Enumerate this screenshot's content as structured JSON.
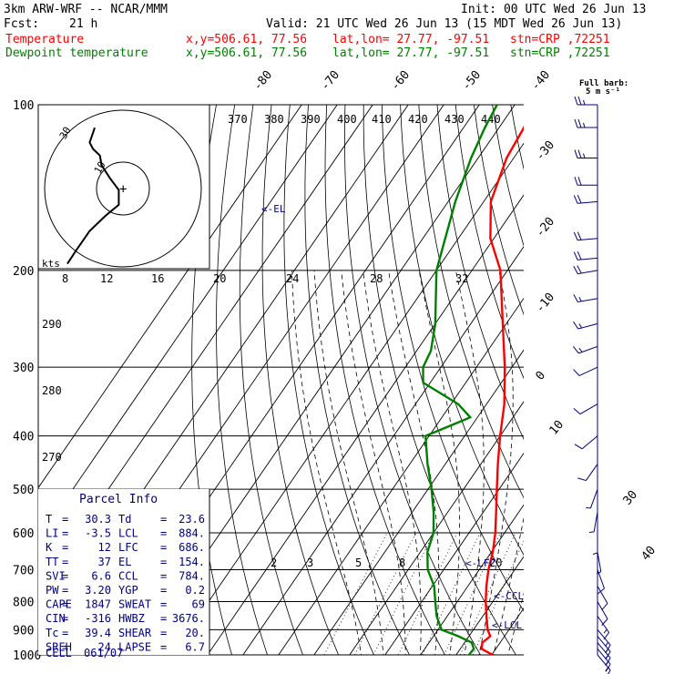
{
  "header": {
    "model": "3km ARW-WRF -- NCAR/MMM",
    "init": "Init: 00 UTC Wed 26 Jun 13",
    "fcst_label": "Fcst:",
    "fcst_hour": "21 h",
    "valid": "Valid: 21 UTC Wed 26 Jun 13 (15 MDT Wed 26 Jun 13)",
    "temp_label": "Temperature",
    "dew_label": "Dewpoint temperature",
    "xy": "x,y=506.61, 77.56",
    "latlon": "lat,lon= 27.77, -97.51",
    "stn": "stn=CRP ,72251"
  },
  "wind_legend": {
    "title": "Full barb:",
    "value": "5 m s⁻¹"
  },
  "parcel_info": {
    "title": "Parcel Info",
    "rows": [
      [
        "T",
        "30.3",
        "Td",
        "23.6"
      ],
      [
        "LI",
        "-3.5",
        "LCL",
        "884."
      ],
      [
        "K",
        "12",
        "LFC",
        "686."
      ],
      [
        "TT",
        "37",
        "EL",
        "154."
      ],
      [
        "SVI",
        "6.6",
        "CCL",
        "784."
      ],
      [
        "PW",
        "3.20",
        "YGP",
        "0.2"
      ],
      [
        "CAPE",
        "1847",
        "SWEAT",
        "69"
      ],
      [
        "CIN",
        "-316",
        "HWBZ",
        "3676."
      ],
      [
        "Tc",
        "39.4",
        "SHEAR",
        "20."
      ],
      [
        "SREH",
        "24",
        "LAPSE",
        "6.7"
      ]
    ],
    "cell_label": "CELL",
    "cell_value": "061/07"
  },
  "levels": {
    "el": "<-EL",
    "lfc": "<-LFC",
    "ccl": "<-CCL",
    "lcl": "<-LCL"
  },
  "hodograph": {
    "units": "kts",
    "ring_labels": [
      "10",
      "30"
    ]
  },
  "chart_data": {
    "type": "line",
    "title": "",
    "y_axis": "pressure (hPa), log scale, skew-T",
    "pressure_ticks": [
      100,
      200,
      300,
      400,
      500,
      600,
      700,
      800,
      900,
      1000
    ],
    "temperature_ticks": [
      -80,
      -70,
      -60,
      -50,
      -40,
      -30,
      -20,
      -10,
      0,
      10,
      30,
      40
    ],
    "theta_labels": [
      "370",
      "380",
      "390",
      "400",
      "410",
      "420",
      "430",
      "440",
      "290",
      "280",
      "270"
    ],
    "mixing_ratio_labels": [
      "8",
      "12",
      "16",
      "20",
      "24",
      "28",
      "32",
      "2",
      "3",
      "5",
      "8",
      "20"
    ],
    "series": [
      {
        "name": "Temperature",
        "color": "#ff0000",
        "points": [
          [
            1000,
            30.3
          ],
          [
            975,
            26
          ],
          [
            950,
            25
          ],
          [
            925,
            26
          ],
          [
            900,
            24
          ],
          [
            850,
            21
          ],
          [
            800,
            18
          ],
          [
            750,
            15.2
          ],
          [
            700,
            12.6
          ],
          [
            650,
            10.4
          ],
          [
            600,
            7.4
          ],
          [
            550,
            3.6
          ],
          [
            500,
            -0.6
          ],
          [
            450,
            -5.2
          ],
          [
            400,
            -10
          ],
          [
            350,
            -15
          ],
          [
            300,
            -22
          ],
          [
            250,
            -31
          ],
          [
            200,
            -42
          ],
          [
            175,
            -51
          ],
          [
            150,
            -58
          ],
          [
            125,
            -62
          ],
          [
            110,
            -63
          ],
          [
            100,
            -64.5
          ]
        ]
      },
      {
        "name": "Dewpoint temperature",
        "color": "#008000",
        "points": [
          [
            1000,
            23.6
          ],
          [
            975,
            23.8
          ],
          [
            950,
            22
          ],
          [
            925,
            17
          ],
          [
            900,
            11
          ],
          [
            850,
            7
          ],
          [
            800,
            3.8
          ],
          [
            750,
            0.5
          ],
          [
            700,
            -4.5
          ],
          [
            650,
            -8
          ],
          [
            600,
            -10
          ],
          [
            550,
            -14
          ],
          [
            500,
            -19
          ],
          [
            450,
            -25
          ],
          [
            400,
            -31
          ],
          [
            370,
            -22
          ],
          [
            350,
            -28
          ],
          [
            320,
            -42
          ],
          [
            300,
            -45
          ],
          [
            280,
            -46
          ],
          [
            250,
            -50
          ],
          [
            200,
            -60
          ],
          [
            150,
            -68
          ],
          [
            125,
            -72
          ],
          [
            110,
            -74
          ],
          [
            100,
            -75
          ]
        ]
      }
    ],
    "hodograph": [
      [
        0.17,
        0.97
      ],
      [
        0.22,
        0.89
      ],
      [
        0.26,
        0.83
      ],
      [
        0.3,
        0.77
      ],
      [
        0.39,
        0.68
      ],
      [
        0.47,
        0.61
      ],
      [
        0.47,
        0.52
      ],
      [
        0.42,
        0.45
      ],
      [
        0.37,
        0.37
      ],
      [
        0.36,
        0.31
      ],
      [
        0.32,
        0.27
      ],
      [
        0.3,
        0.23
      ],
      [
        0.32,
        0.17
      ],
      [
        0.33,
        0.14
      ]
    ],
    "wind_barbs": [
      {
        "p": 100,
        "dir": 270,
        "spd": 14
      },
      {
        "p": 110,
        "dir": 270,
        "spd": 13
      },
      {
        "p": 125,
        "dir": 270,
        "spd": 13
      },
      {
        "p": 140,
        "dir": 270,
        "spd": 12
      },
      {
        "p": 150,
        "dir": 265,
        "spd": 11
      },
      {
        "p": 175,
        "dir": 265,
        "spd": 10
      },
      {
        "p": 190,
        "dir": 265,
        "spd": 10
      },
      {
        "p": 200,
        "dir": 260,
        "spd": 10
      },
      {
        "p": 225,
        "dir": 260,
        "spd": 9
      },
      {
        "p": 250,
        "dir": 255,
        "spd": 9
      },
      {
        "p": 275,
        "dir": 250,
        "spd": 8
      },
      {
        "p": 300,
        "dir": 245,
        "spd": 7
      },
      {
        "p": 350,
        "dir": 240,
        "spd": 7
      },
      {
        "p": 400,
        "dir": 230,
        "spd": 6
      },
      {
        "p": 450,
        "dir": 215,
        "spd": 5
      },
      {
        "p": 500,
        "dir": 200,
        "spd": 4
      },
      {
        "p": 550,
        "dir": 190,
        "spd": 4
      },
      {
        "p": 600,
        "dir": 180,
        "spd": 4
      },
      {
        "p": 650,
        "dir": 170,
        "spd": 4
      },
      {
        "p": 700,
        "dir": 160,
        "spd": 5
      },
      {
        "p": 750,
        "dir": 150,
        "spd": 6
      },
      {
        "p": 800,
        "dir": 150,
        "spd": 7
      },
      {
        "p": 850,
        "dir": 145,
        "spd": 8
      },
      {
        "p": 900,
        "dir": 140,
        "spd": 8
      },
      {
        "p": 925,
        "dir": 140,
        "spd": 8
      },
      {
        "p": 950,
        "dir": 140,
        "spd": 9
      },
      {
        "p": 975,
        "dir": 140,
        "spd": 9
      },
      {
        "p": 1000,
        "dir": 140,
        "spd": 9
      }
    ]
  }
}
